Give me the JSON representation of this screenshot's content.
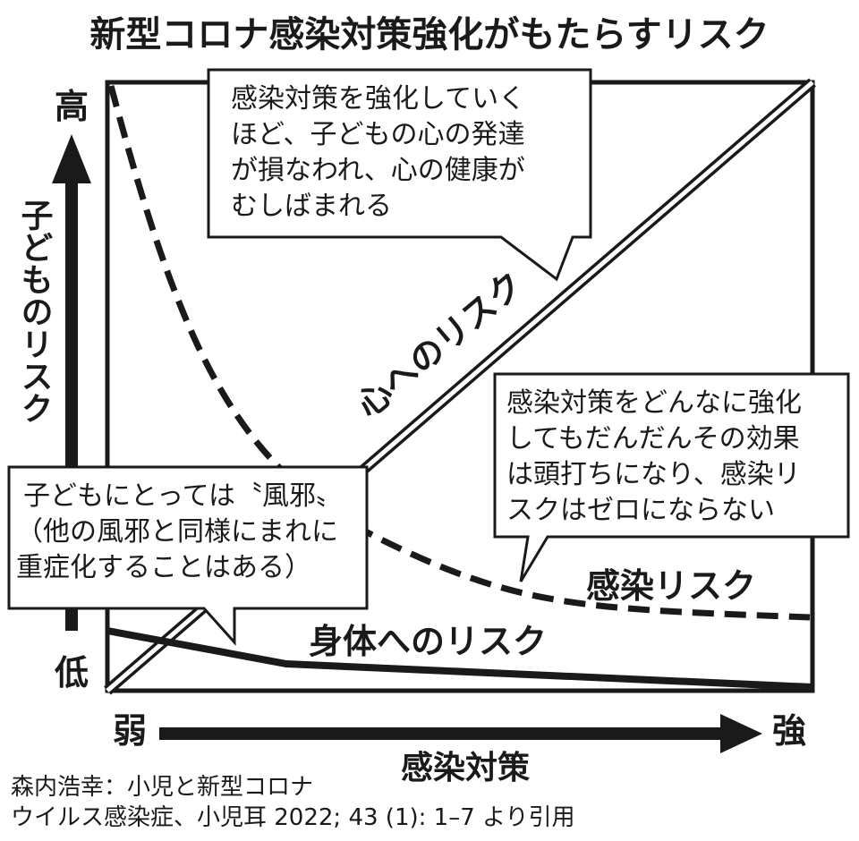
{
  "title": "新型コロナ感染対策強化がもたらすリスク",
  "y_axis": {
    "high": "高",
    "low": "低",
    "label": "子どものリスク"
  },
  "x_axis": {
    "low": "弱",
    "high": "強",
    "label": "感染対策"
  },
  "curves": {
    "mind": "心へのリスク",
    "infection": "感染リスク",
    "body": "身体へのリスク"
  },
  "callouts": [
    {
      "lines": [
        "感染対策を強化していく",
        "ほど、子どもの心の発達",
        "が損なわれ、心の健康が",
        "むしばまれる"
      ]
    },
    {
      "lines": [
        "感染対策をどんなに強化",
        "してもだんだんその効果",
        "は頭打ちになり、感染リ",
        "スクはゼロにならない"
      ]
    },
    {
      "lines": [
        "子どもにとっては〝風邪〟",
        "（他の風邪と同様にまれに",
        "重症化することはある）"
      ]
    }
  ],
  "source": [
    "森内浩幸：小児と新型コロナ",
    "ウイルス感染症、小児耳 2022; 43 (1): 1–7 より引用"
  ]
}
